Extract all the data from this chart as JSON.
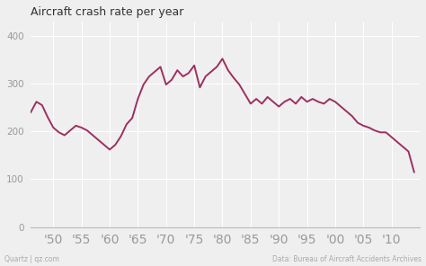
{
  "title": "Aircraft crash rate per year",
  "line_color": "#9b3060",
  "background_color": "#efefef",
  "plot_bg_color": "#efefef",
  "grid_color": "#ffffff",
  "footer_left": "Quartz | qz.com",
  "footer_right": "Data: Bureau of Aircraft Accidents Archives",
  "ylim": [
    0,
    430
  ],
  "yticks": [
    0,
    100,
    200,
    300,
    400
  ],
  "xtick_labels": [
    "'50",
    "'55",
    "'60",
    "'65",
    "'70",
    "'75",
    "'80",
    "'85",
    "'90",
    "'95",
    "'00",
    "'05",
    "'10"
  ],
  "xtick_years": [
    1950,
    1955,
    1960,
    1965,
    1970,
    1975,
    1980,
    1985,
    1990,
    1995,
    2000,
    2005,
    2010
  ],
  "years": [
    1946,
    1947,
    1948,
    1949,
    1950,
    1951,
    1952,
    1953,
    1954,
    1955,
    1956,
    1957,
    1958,
    1959,
    1960,
    1961,
    1962,
    1963,
    1964,
    1965,
    1966,
    1967,
    1968,
    1969,
    1970,
    1971,
    1972,
    1973,
    1974,
    1975,
    1976,
    1977,
    1978,
    1979,
    1980,
    1981,
    1982,
    1983,
    1984,
    1985,
    1986,
    1987,
    1988,
    1989,
    1990,
    1991,
    1992,
    1993,
    1994,
    1995,
    1996,
    1997,
    1998,
    1999,
    2000,
    2001,
    2002,
    2003,
    2004,
    2005,
    2006,
    2007,
    2008,
    2009,
    2010,
    2011,
    2012,
    2013,
    2014
  ],
  "values": [
    240,
    262,
    255,
    230,
    208,
    198,
    192,
    202,
    212,
    208,
    202,
    192,
    182,
    172,
    162,
    172,
    190,
    215,
    228,
    268,
    298,
    315,
    325,
    335,
    298,
    308,
    328,
    315,
    322,
    338,
    292,
    315,
    325,
    335,
    352,
    328,
    312,
    298,
    278,
    258,
    268,
    258,
    272,
    262,
    252,
    262,
    268,
    258,
    272,
    262,
    268,
    262,
    258,
    268,
    262,
    252,
    242,
    232,
    218,
    212,
    208,
    202,
    198,
    198,
    188,
    178,
    168,
    158,
    115
  ]
}
